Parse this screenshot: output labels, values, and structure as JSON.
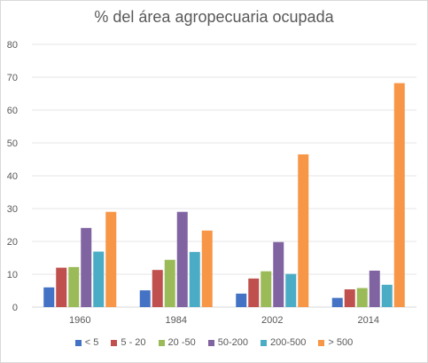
{
  "chart_data": {
    "type": "bar",
    "title": "% del área agropecuaria ocupada",
    "categories": [
      "1960",
      "1984",
      "2002",
      "2014"
    ],
    "ylim": [
      0,
      80
    ],
    "yticks": [
      0,
      10,
      20,
      30,
      40,
      50,
      60,
      70,
      80
    ],
    "ytick_labels": [
      "0",
      "10",
      "20",
      "30",
      "40",
      "50",
      "60",
      "70",
      "80"
    ],
    "grid": true,
    "legend_position": "bottom",
    "series": [
      {
        "name": "< 5",
        "color": "#4472C4",
        "values": [
          6,
          5.1,
          4.1,
          2.8
        ]
      },
      {
        "name": "5 - 20",
        "color": "#C0504D",
        "values": [
          12,
          11.3,
          8.7,
          5.4
        ]
      },
      {
        "name": "20 -50",
        "color": "#9BBB59",
        "values": [
          12.2,
          14.4,
          10.9,
          5.8
        ]
      },
      {
        "name": "50-200",
        "color": "#8064A2",
        "values": [
          24.1,
          29,
          19.8,
          11.1
        ]
      },
      {
        "name": "200-500",
        "color": "#4BACC6",
        "values": [
          16.9,
          16.8,
          10.1,
          6.8
        ]
      },
      {
        "name": "> 500",
        "color": "#F79646",
        "values": [
          29,
          23.3,
          46.5,
          68.2
        ]
      }
    ]
  }
}
